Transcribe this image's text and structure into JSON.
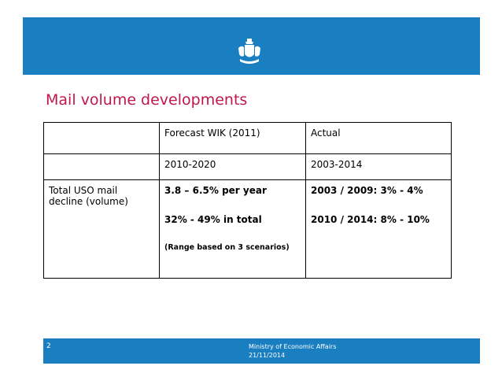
{
  "slide": {
    "title": "Mail volume developments"
  },
  "table": {
    "header1": {
      "c1": "",
      "c2": "Forecast WIK (2011)",
      "c3": "Actual"
    },
    "header2": {
      "c1": "",
      "c2": "2010-2020",
      "c3": "2003-2014"
    },
    "row": {
      "label": "Total USO mail decline (volume)",
      "forecast_line1": "3.8 – 6.5%  per year",
      "forecast_line2": "32%  - 49%  in total",
      "forecast_note": "(Range based on 3 scenarios)",
      "actual_line1": "2003 / 2009: 3%  - 4%",
      "actual_line2": "2010 / 2014: 8%  - 10%"
    }
  },
  "footer": {
    "page_number": "2",
    "ministry": "Ministry of Economic Affairs",
    "date": "21/11/2014"
  },
  "colors": {
    "banner": "#1a7fc1",
    "title": "#c0174b"
  }
}
